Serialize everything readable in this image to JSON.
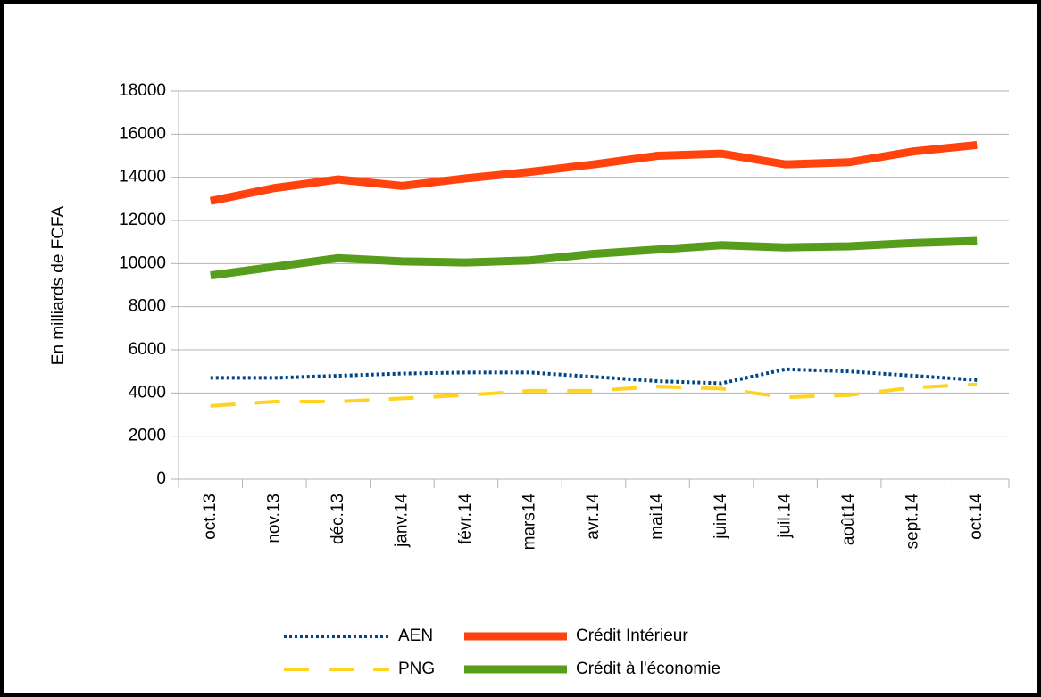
{
  "chart_data": {
    "type": "line",
    "y_label": "En milliards de FCFA",
    "categories": [
      "oct.13",
      "nov.13",
      "déc.13",
      "janv.14",
      "févr.14",
      "mars14",
      "avr.14",
      "mai14",
      "juin14",
      "juil.14",
      "août14",
      "sept.14",
      "oct.14"
    ],
    "series": [
      {
        "name": "AEN",
        "color": "#004586",
        "style": "dotted",
        "values": [
          4700,
          4700,
          4800,
          4900,
          4950,
          4950,
          4750,
          4550,
          4450,
          5100,
          5000,
          4800,
          4600
        ]
      },
      {
        "name": "Crédit Intérieur",
        "color": "#ff420e",
        "style": "solid",
        "values": [
          12900,
          13500,
          13900,
          13600,
          13950,
          14250,
          14600,
          15000,
          15100,
          14600,
          14700,
          15200,
          15500
        ]
      },
      {
        "name": "PNG",
        "color": "#ffd320",
        "style": "dashed",
        "values": [
          3400,
          3600,
          3600,
          3750,
          3900,
          4100,
          4100,
          4300,
          4200,
          3800,
          3900,
          4250,
          4400
        ]
      },
      {
        "name": "Crédit à l'économie",
        "color": "#579d1c",
        "style": "solid",
        "values": [
          9450,
          9850,
          10250,
          10100,
          10050,
          10150,
          10450,
          10650,
          10850,
          10750,
          10800,
          10950,
          11050
        ]
      }
    ],
    "ylim": [
      0,
      18000
    ],
    "yticks": [
      0,
      2000,
      4000,
      6000,
      8000,
      10000,
      12000,
      14000,
      16000,
      18000
    ],
    "grid": true,
    "legend_position": "bottom"
  }
}
